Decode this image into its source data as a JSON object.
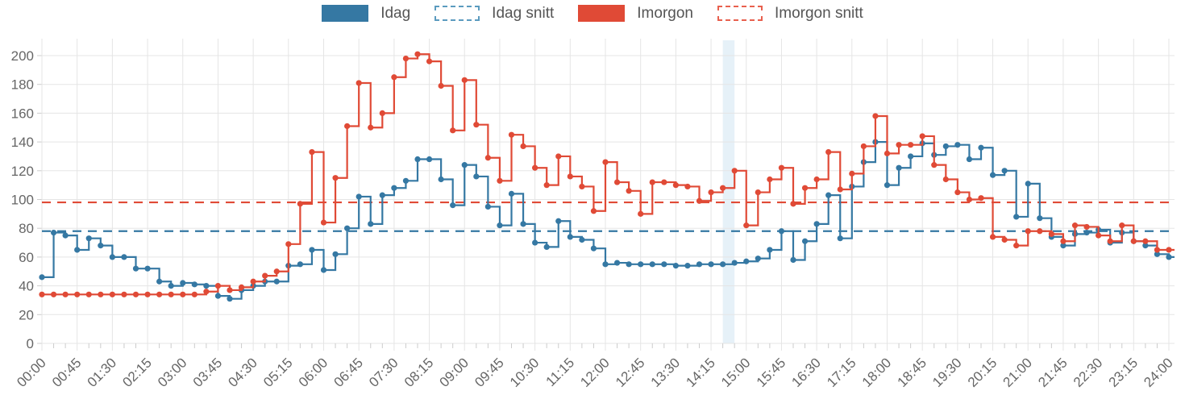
{
  "legend": {
    "items": [
      {
        "label": "Idag",
        "swatch": "solid",
        "color": "#3578a3"
      },
      {
        "label": "Idag snitt",
        "swatch": "dashed",
        "color": "#5b9bbf"
      },
      {
        "label": "Imorgon",
        "swatch": "solid",
        "color": "#e04a36"
      },
      {
        "label": "Imorgon snitt",
        "swatch": "dashed",
        "color": "#e8604e"
      }
    ]
  },
  "colors": {
    "background": "#ffffff",
    "grid": "#e5e5e5",
    "tick": "#cccccc",
    "axis_text": "#666666",
    "legend_text": "#555555",
    "band": "#e6f1f8",
    "idag": "#3578a3",
    "imorgon": "#e04a36"
  },
  "chart_data": {
    "type": "line",
    "line_style": "step-after with point markers",
    "interval_minutes": 15,
    "grid": true,
    "legend_position": "top",
    "x_axis": {
      "range_minutes": [
        0,
        1440
      ],
      "major_tick_interval_minutes": 45,
      "minor_tick_interval_minutes": 15,
      "tick_labels": [
        "00:00",
        "00:45",
        "01:30",
        "02:15",
        "03:00",
        "03:45",
        "04:30",
        "05:15",
        "06:00",
        "06:45",
        "07:30",
        "08:15",
        "09:00",
        "09:45",
        "10:30",
        "11:15",
        "12:00",
        "12:45",
        "13:30",
        "14:15",
        "15:00",
        "15:45",
        "16:30",
        "17:15",
        "18:00",
        "18:45",
        "19:30",
        "20:15",
        "21:00",
        "21:45",
        "22:30",
        "23:15",
        "24:00"
      ]
    },
    "y_axis": {
      "ticks": [
        0,
        20,
        40,
        60,
        80,
        100,
        120,
        140,
        160,
        180,
        200
      ],
      "range": [
        0,
        210
      ]
    },
    "series": [
      {
        "name": "Idag",
        "color": "#3578a3",
        "start": "00:00",
        "values": [
          46,
          77,
          75,
          65,
          73,
          68,
          60,
          60,
          52,
          52,
          43,
          40,
          42,
          41,
          40,
          33,
          31,
          37,
          40,
          43,
          43,
          54,
          55,
          65,
          51,
          62,
          80,
          102,
          83,
          103,
          108,
          113,
          128,
          128,
          114,
          96,
          124,
          116,
          95,
          82,
          104,
          83,
          70,
          67,
          85,
          74,
          72,
          66,
          55,
          56,
          55,
          55,
          55,
          55,
          54,
          54,
          55,
          55,
          55,
          56,
          57,
          59,
          65,
          78,
          58,
          71,
          83,
          103,
          73,
          109,
          126,
          140,
          110,
          122,
          130,
          139,
          131,
          137,
          138,
          128,
          136,
          117,
          120,
          88,
          111,
          87,
          74,
          68,
          76,
          77,
          79,
          70,
          77,
          71,
          68,
          62,
          60
        ]
      },
      {
        "name": "Imorgon",
        "color": "#e04a36",
        "start": "00:00",
        "values": [
          34,
          34,
          34,
          34,
          34,
          34,
          34,
          34,
          34,
          34,
          34,
          34,
          34,
          34,
          36,
          40,
          37,
          39,
          43,
          47,
          50,
          69,
          97,
          133,
          84,
          115,
          151,
          181,
          150,
          160,
          185,
          198,
          201,
          196,
          179,
          148,
          183,
          152,
          129,
          113,
          145,
          137,
          122,
          110,
          130,
          116,
          109,
          92,
          126,
          112,
          106,
          90,
          112,
          112,
          110,
          109,
          99,
          105,
          108,
          120,
          82,
          105,
          114,
          122,
          97,
          108,
          114,
          133,
          107,
          118,
          137,
          158,
          132,
          138,
          138,
          144,
          124,
          114,
          105,
          100,
          101,
          74,
          72,
          68,
          78,
          78,
          76,
          71,
          82,
          81,
          75,
          71,
          82,
          71,
          71,
          65,
          65
        ]
      }
    ],
    "average_lines": [
      {
        "name": "Idag snitt",
        "value": 78,
        "color": "#3578a3"
      },
      {
        "name": "Imorgon snitt",
        "value": 98,
        "color": "#e04a36"
      }
    ],
    "current_time_band": {
      "start_minutes": 870,
      "end_minutes": 885,
      "label": "14:30-14:45",
      "color": "#e6f1f8"
    }
  }
}
